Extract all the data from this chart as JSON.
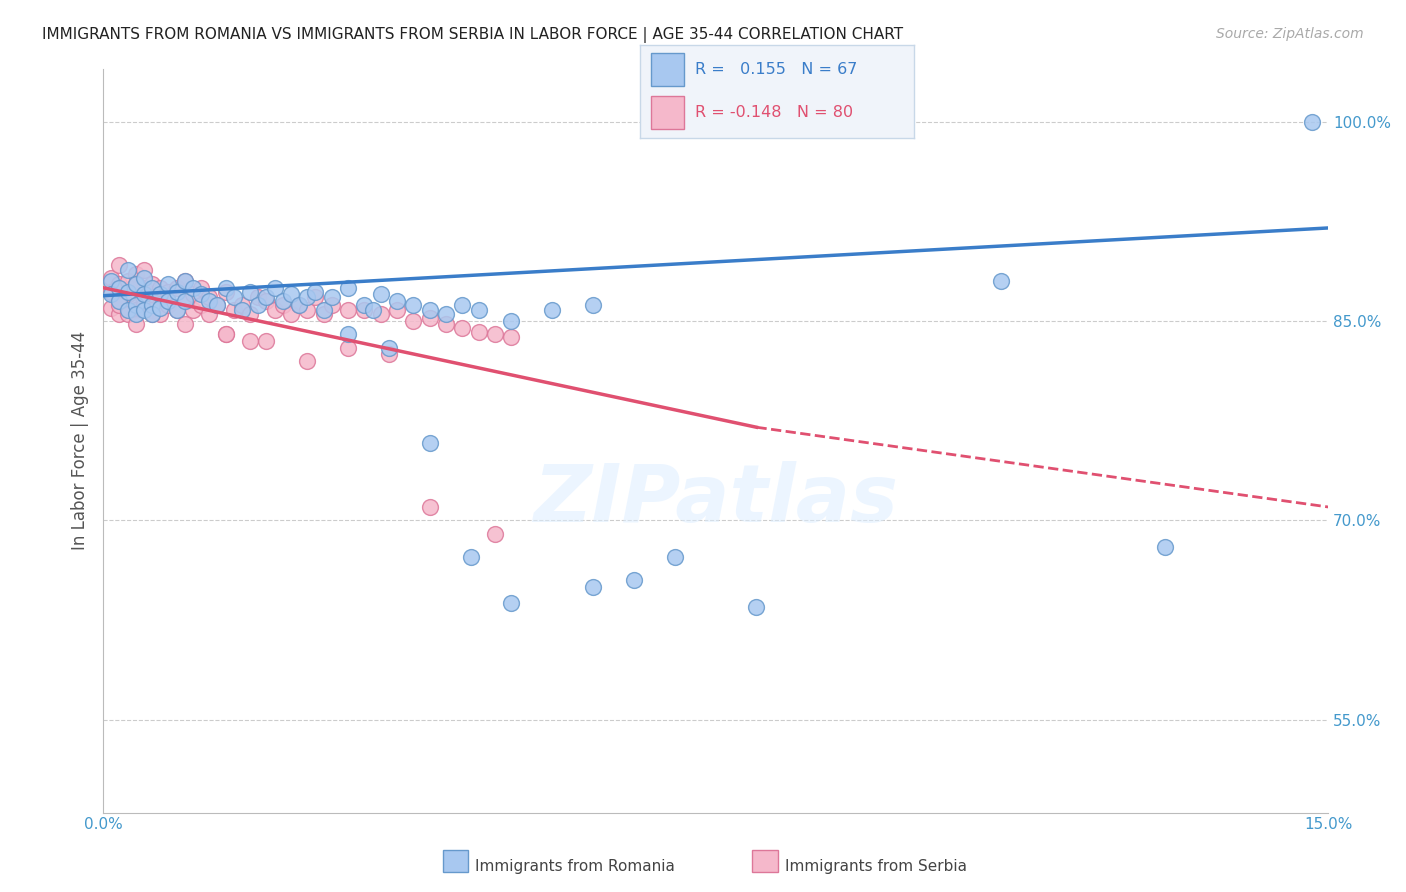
{
  "title": "IMMIGRANTS FROM ROMANIA VS IMMIGRANTS FROM SERBIA IN LABOR FORCE | AGE 35-44 CORRELATION CHART",
  "source": "Source: ZipAtlas.com",
  "ylabel": "In Labor Force | Age 35-44",
  "xmin": 0.0,
  "xmax": 0.15,
  "ymin": 0.48,
  "ymax": 1.04,
  "yticks": [
    0.55,
    0.7,
    0.85,
    1.0
  ],
  "ytick_labels": [
    "55.0%",
    "70.0%",
    "85.0%",
    "100.0%"
  ],
  "xticks": [
    0.0,
    0.03,
    0.06,
    0.09,
    0.12,
    0.15
  ],
  "xtick_labels": [
    "0.0%",
    "",
    "",
    "",
    "",
    "15.0%"
  ],
  "romania_color": "#a8c8f0",
  "serbia_color": "#f5b8cb",
  "romania_edge": "#6699cc",
  "serbia_edge": "#dd7799",
  "trend_blue": "#3a7dc9",
  "trend_pink": "#e05070",
  "R_romania": 0.155,
  "N_romania": 67,
  "R_serbia": -0.148,
  "N_serbia": 80,
  "background_color": "#ffffff",
  "grid_color": "#cccccc",
  "axis_color": "#bbbbbb",
  "tick_color": "#4499cc",
  "watermark": "ZIPatlas",
  "legend_box_color": "#f0f4fa",
  "legend_border_color": "#c8d8e8",
  "romania_x": [
    0.001,
    0.001,
    0.002,
    0.002,
    0.003,
    0.003,
    0.003,
    0.004,
    0.004,
    0.004,
    0.005,
    0.005,
    0.005,
    0.006,
    0.006,
    0.006,
    0.007,
    0.007,
    0.008,
    0.008,
    0.009,
    0.009,
    0.01,
    0.01,
    0.011,
    0.012,
    0.013,
    0.014,
    0.015,
    0.016,
    0.017,
    0.018,
    0.019,
    0.02,
    0.021,
    0.022,
    0.023,
    0.024,
    0.025,
    0.026,
    0.027,
    0.028,
    0.03,
    0.032,
    0.033,
    0.034,
    0.036,
    0.038,
    0.04,
    0.042,
    0.044,
    0.046,
    0.05,
    0.055,
    0.06,
    0.065,
    0.03,
    0.035,
    0.04,
    0.045,
    0.05,
    0.06,
    0.07,
    0.08,
    0.11,
    0.148,
    0.13
  ],
  "romania_y": [
    0.88,
    0.87,
    0.875,
    0.865,
    0.872,
    0.858,
    0.888,
    0.862,
    0.878,
    0.855,
    0.87,
    0.882,
    0.858,
    0.875,
    0.862,
    0.855,
    0.87,
    0.86,
    0.878,
    0.865,
    0.872,
    0.858,
    0.88,
    0.865,
    0.875,
    0.87,
    0.865,
    0.862,
    0.875,
    0.868,
    0.858,
    0.872,
    0.862,
    0.868,
    0.875,
    0.865,
    0.87,
    0.862,
    0.868,
    0.872,
    0.858,
    0.868,
    0.875,
    0.862,
    0.858,
    0.87,
    0.865,
    0.862,
    0.858,
    0.855,
    0.862,
    0.858,
    0.85,
    0.858,
    0.862,
    0.655,
    0.84,
    0.83,
    0.758,
    0.672,
    0.638,
    0.65,
    0.672,
    0.635,
    0.88,
    1.0,
    0.68
  ],
  "serbia_x": [
    0.001,
    0.001,
    0.001,
    0.002,
    0.002,
    0.002,
    0.002,
    0.002,
    0.003,
    0.003,
    0.003,
    0.003,
    0.004,
    0.004,
    0.004,
    0.005,
    0.005,
    0.005,
    0.006,
    0.006,
    0.006,
    0.007,
    0.007,
    0.007,
    0.008,
    0.008,
    0.009,
    0.009,
    0.01,
    0.01,
    0.011,
    0.011,
    0.012,
    0.012,
    0.013,
    0.013,
    0.014,
    0.015,
    0.016,
    0.017,
    0.018,
    0.019,
    0.02,
    0.021,
    0.022,
    0.023,
    0.024,
    0.025,
    0.026,
    0.027,
    0.028,
    0.03,
    0.032,
    0.034,
    0.036,
    0.038,
    0.04,
    0.042,
    0.044,
    0.046,
    0.048,
    0.05,
    0.03,
    0.035,
    0.015,
    0.02,
    0.025,
    0.004,
    0.003,
    0.002,
    0.002,
    0.003,
    0.003,
    0.004,
    0.006,
    0.01,
    0.015,
    0.018,
    0.04,
    0.048
  ],
  "serbia_y": [
    0.882,
    0.872,
    0.86,
    0.878,
    0.868,
    0.892,
    0.855,
    0.875,
    0.88,
    0.87,
    0.858,
    0.865,
    0.878,
    0.858,
    0.885,
    0.875,
    0.862,
    0.888,
    0.87,
    0.858,
    0.878,
    0.868,
    0.855,
    0.875,
    0.862,
    0.872,
    0.858,
    0.875,
    0.865,
    0.88,
    0.87,
    0.858,
    0.875,
    0.862,
    0.868,
    0.855,
    0.862,
    0.872,
    0.858,
    0.862,
    0.855,
    0.868,
    0.865,
    0.858,
    0.862,
    0.855,
    0.862,
    0.858,
    0.868,
    0.855,
    0.862,
    0.858,
    0.858,
    0.855,
    0.858,
    0.85,
    0.852,
    0.848,
    0.845,
    0.842,
    0.84,
    0.838,
    0.83,
    0.825,
    0.84,
    0.835,
    0.82,
    0.878,
    0.87,
    0.865,
    0.862,
    0.858,
    0.855,
    0.848,
    0.855,
    0.848,
    0.84,
    0.835,
    0.71,
    0.69
  ]
}
